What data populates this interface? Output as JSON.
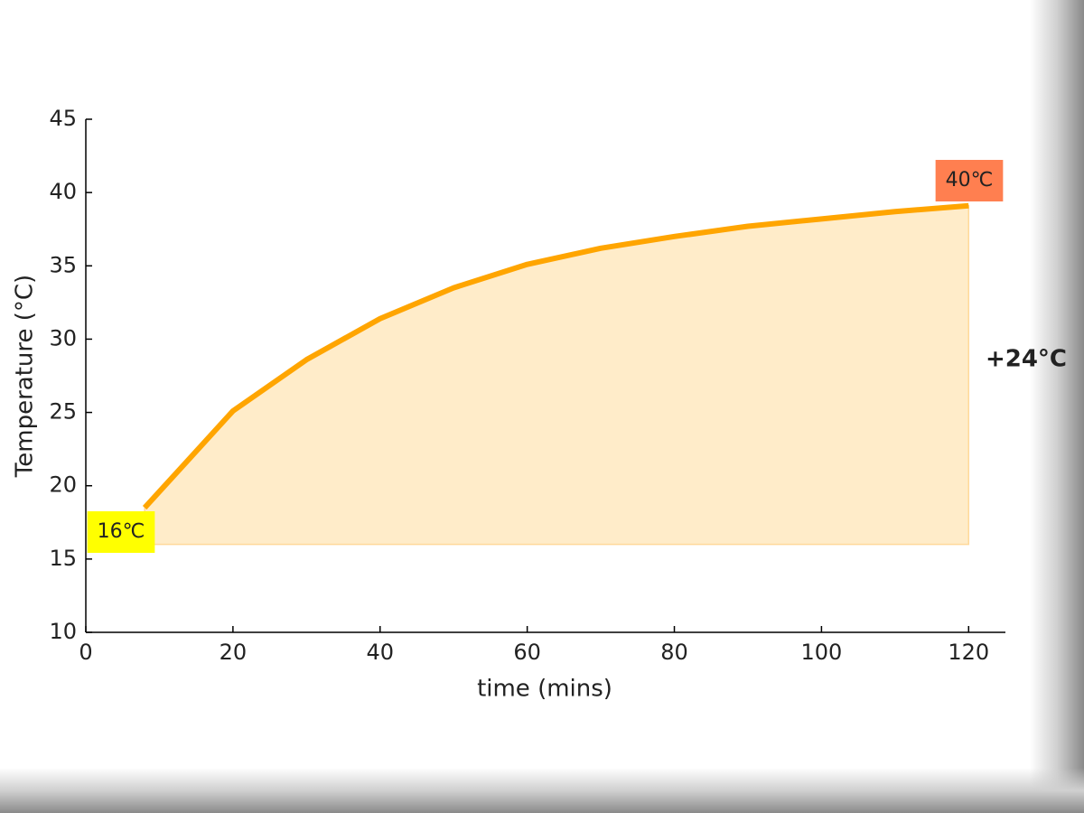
{
  "chart_data": {
    "type": "area-line",
    "x_label": "time (mins)",
    "y_label": "Temperature (°C)",
    "x": [
      8,
      10,
      20,
      30,
      40,
      50,
      60,
      70,
      80,
      90,
      100,
      110,
      120
    ],
    "series": [
      {
        "color": "#ffa500",
        "values": [
          18.5,
          19.6,
          25.1,
          28.6,
          31.4,
          33.5,
          35.1,
          36.2,
          37.0,
          37.7,
          38.2,
          38.7,
          39.1
        ]
      }
    ],
    "fill_to": 16,
    "fill_color": "#ffecc9",
    "xlim": [
      0,
      125
    ],
    "xticks": [
      0,
      20,
      40,
      60,
      80,
      100,
      120
    ],
    "ylim": [
      10,
      45
    ],
    "yticks": [
      10,
      15,
      20,
      25,
      30,
      35,
      40,
      45
    ],
    "grid": false,
    "annotations": [
      {
        "text": "16℃",
        "color": "#ffff00"
      },
      {
        "text": "40℃",
        "color": "#ff7f50"
      },
      {
        "text": "+24°C",
        "color": "#e8450c"
      }
    ]
  }
}
